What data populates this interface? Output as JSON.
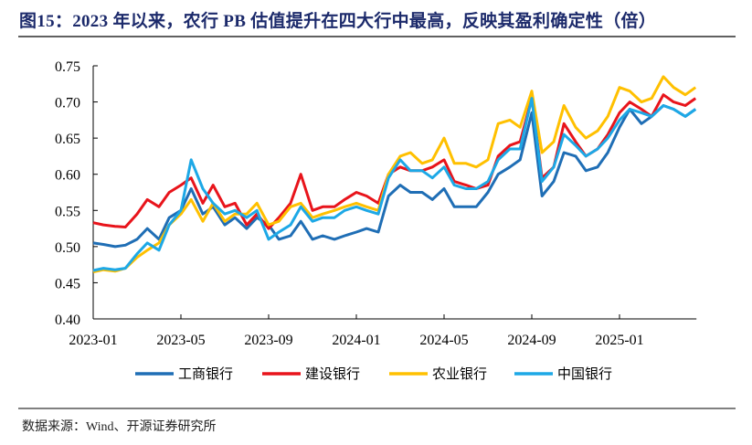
{
  "title": "图15：2023 年以来，农行 PB 估值提升在四大行中最高，反映其盈利确定性（倍）",
  "source": "数据来源：Wind、开源证券研究所",
  "chart_data": {
    "type": "line",
    "title": "",
    "xlabel": "",
    "ylabel": "",
    "ylim": [
      0.4,
      0.75
    ],
    "yticks": [
      "0.40",
      "0.45",
      "0.50",
      "0.55",
      "0.60",
      "0.65",
      "0.70",
      "0.75"
    ],
    "xticks": [
      "2023-01",
      "2023-05",
      "2023-09",
      "2024-01",
      "2024-05",
      "2024-09",
      "2025-01"
    ],
    "grid": false,
    "legend": "bottom",
    "x": [
      "2023-01-01",
      "2023-01-15",
      "2023-02-01",
      "2023-02-15",
      "2023-03-01",
      "2023-03-15",
      "2023-04-01",
      "2023-04-15",
      "2023-05-01",
      "2023-05-15",
      "2023-06-01",
      "2023-06-15",
      "2023-07-01",
      "2023-07-15",
      "2023-08-01",
      "2023-08-15",
      "2023-09-01",
      "2023-09-15",
      "2023-10-01",
      "2023-10-15",
      "2023-11-01",
      "2023-11-15",
      "2023-12-01",
      "2023-12-15",
      "2024-01-01",
      "2024-01-15",
      "2024-02-01",
      "2024-02-15",
      "2024-03-01",
      "2024-03-15",
      "2024-04-01",
      "2024-04-15",
      "2024-05-01",
      "2024-05-15",
      "2024-06-01",
      "2024-06-15",
      "2024-07-01",
      "2024-07-15",
      "2024-08-01",
      "2024-08-15",
      "2024-09-01",
      "2024-09-15",
      "2024-10-01",
      "2024-10-15",
      "2024-11-01",
      "2024-11-15",
      "2024-12-01",
      "2024-12-15",
      "2025-01-01",
      "2025-01-15",
      "2025-02-01",
      "2025-02-15",
      "2025-03-01",
      "2025-03-15",
      "2025-04-01",
      "2025-04-15"
    ],
    "series": [
      {
        "name": "工商银行",
        "color": "#1F6EB5",
        "values": [
          0.505,
          0.503,
          0.5,
          0.502,
          0.51,
          0.525,
          0.51,
          0.54,
          0.55,
          0.58,
          0.545,
          0.555,
          0.53,
          0.54,
          0.525,
          0.54,
          0.53,
          0.51,
          0.515,
          0.535,
          0.51,
          0.515,
          0.51,
          0.515,
          0.52,
          0.525,
          0.52,
          0.57,
          0.585,
          0.575,
          0.575,
          0.565,
          0.58,
          0.555,
          0.555,
          0.555,
          0.575,
          0.6,
          0.61,
          0.62,
          0.685,
          0.57,
          0.59,
          0.63,
          0.625,
          0.605,
          0.61,
          0.63,
          0.665,
          0.69,
          0.67,
          0.68,
          0.695,
          0.69,
          0.68,
          0.69
        ]
      },
      {
        "name": "建设银行",
        "color": "#E8141B",
        "values": [
          0.533,
          0.53,
          0.528,
          0.527,
          0.545,
          0.565,
          0.555,
          0.575,
          0.585,
          0.595,
          0.56,
          0.585,
          0.555,
          0.56,
          0.53,
          0.545,
          0.525,
          0.54,
          0.56,
          0.6,
          0.55,
          0.555,
          0.555,
          0.565,
          0.575,
          0.57,
          0.56,
          0.6,
          0.61,
          0.605,
          0.605,
          0.61,
          0.62,
          0.59,
          0.585,
          0.58,
          0.585,
          0.625,
          0.64,
          0.645,
          0.705,
          0.595,
          0.61,
          0.67,
          0.645,
          0.625,
          0.635,
          0.655,
          0.685,
          0.7,
          0.69,
          0.68,
          0.71,
          0.7,
          0.695,
          0.705
        ]
      },
      {
        "name": "农业银行",
        "color": "#FFC000",
        "values": [
          0.465,
          0.468,
          0.466,
          0.47,
          0.485,
          0.495,
          0.505,
          0.53,
          0.545,
          0.565,
          0.535,
          0.56,
          0.535,
          0.545,
          0.545,
          0.56,
          0.53,
          0.535,
          0.555,
          0.56,
          0.54,
          0.545,
          0.55,
          0.555,
          0.56,
          0.555,
          0.55,
          0.6,
          0.625,
          0.63,
          0.615,
          0.62,
          0.65,
          0.615,
          0.615,
          0.61,
          0.62,
          0.67,
          0.675,
          0.665,
          0.715,
          0.63,
          0.645,
          0.695,
          0.665,
          0.65,
          0.66,
          0.68,
          0.72,
          0.715,
          0.7,
          0.705,
          0.735,
          0.72,
          0.71,
          0.72
        ]
      },
      {
        "name": "中国银行",
        "color": "#1DA8E6",
        "values": [
          0.467,
          0.47,
          0.468,
          0.47,
          0.49,
          0.505,
          0.495,
          0.53,
          0.55,
          0.62,
          0.58,
          0.56,
          0.545,
          0.55,
          0.54,
          0.55,
          0.51,
          0.52,
          0.53,
          0.555,
          0.535,
          0.54,
          0.54,
          0.55,
          0.555,
          0.55,
          0.545,
          0.595,
          0.62,
          0.605,
          0.605,
          0.595,
          0.61,
          0.585,
          0.58,
          0.58,
          0.59,
          0.62,
          0.635,
          0.635,
          0.705,
          0.59,
          0.61,
          0.655,
          0.64,
          0.625,
          0.635,
          0.65,
          0.675,
          0.69,
          0.685,
          0.68,
          0.695,
          0.69,
          0.68,
          0.69
        ]
      }
    ]
  }
}
